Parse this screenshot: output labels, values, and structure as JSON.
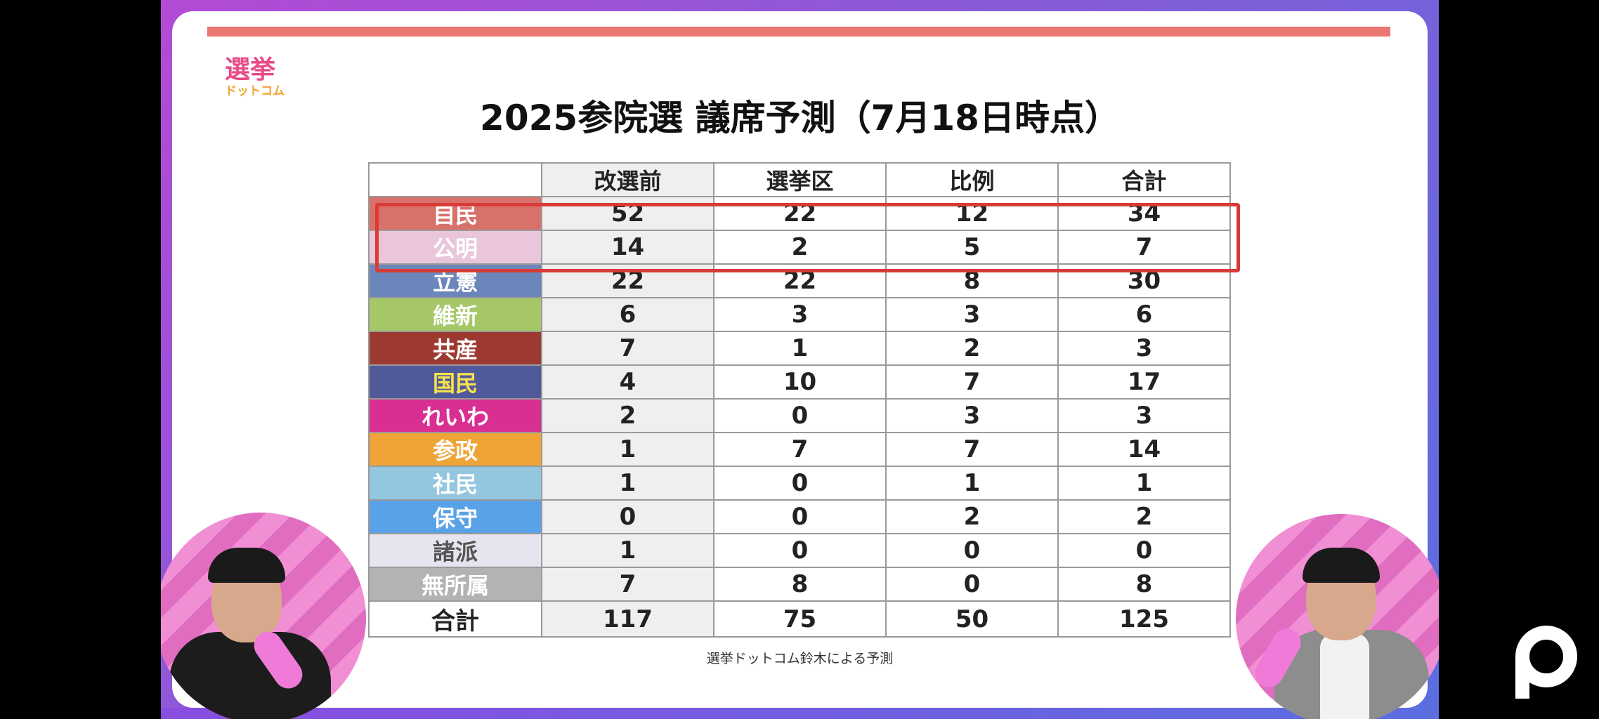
{
  "logo": {
    "top": "選挙",
    "bottom": "ドットコム"
  },
  "title": "2025参院選 議席予測（7月18日時点）",
  "table": {
    "headers": [
      "",
      "改選前",
      "選挙区",
      "比例",
      "合計"
    ],
    "rows": [
      {
        "party": "自民",
        "color": "#d9716b",
        "text_color": "#ffffff",
        "values": [
          "52",
          "22",
          "12",
          "34"
        ]
      },
      {
        "party": "公明",
        "color": "#e9c6dc",
        "text_color": "#ffffff",
        "values": [
          "14",
          "2",
          "5",
          "7"
        ]
      },
      {
        "party": "立憲",
        "color": "#6b86bb",
        "text_color": "#ffffff",
        "values": [
          "22",
          "22",
          "8",
          "30"
        ]
      },
      {
        "party": "維新",
        "color": "#a5c768",
        "text_color": "#ffffff",
        "values": [
          "6",
          "3",
          "3",
          "6"
        ]
      },
      {
        "party": "共産",
        "color": "#9c3a32",
        "text_color": "#ffffff",
        "values": [
          "7",
          "1",
          "2",
          "3"
        ]
      },
      {
        "party": "国民",
        "color": "#505a9b",
        "text_color": "#f7e34d",
        "values": [
          "4",
          "10",
          "7",
          "17"
        ]
      },
      {
        "party": "れいわ",
        "color": "#d92f93",
        "text_color": "#ffffff",
        "values": [
          "2",
          "0",
          "3",
          "3"
        ]
      },
      {
        "party": "参政",
        "color": "#eea437",
        "text_color": "#ffffff",
        "values": [
          "1",
          "7",
          "7",
          "14"
        ]
      },
      {
        "party": "社民",
        "color": "#93c6df",
        "text_color": "#ffffff",
        "values": [
          "1",
          "0",
          "1",
          "1"
        ]
      },
      {
        "party": "保守",
        "color": "#5aa2e8",
        "text_color": "#ffffff",
        "values": [
          "0",
          "0",
          "2",
          "2"
        ]
      },
      {
        "party": "諸派",
        "color": "#e8e4ef",
        "text_color": "#555555",
        "values": [
          "1",
          "0",
          "0",
          "0"
        ]
      },
      {
        "party": "無所属",
        "color": "#b3b3b3",
        "text_color": "#ffffff",
        "values": [
          "7",
          "8",
          "0",
          "8"
        ]
      }
    ],
    "total": {
      "label": "合計",
      "values": [
        "117",
        "75",
        "50",
        "125"
      ]
    }
  },
  "source": "選挙ドットコム鈴木による予測",
  "colors": {
    "accent_bar": "#ec7671",
    "highlight": "#d93b37"
  },
  "icons": {
    "watermark": "p-logo-icon"
  }
}
